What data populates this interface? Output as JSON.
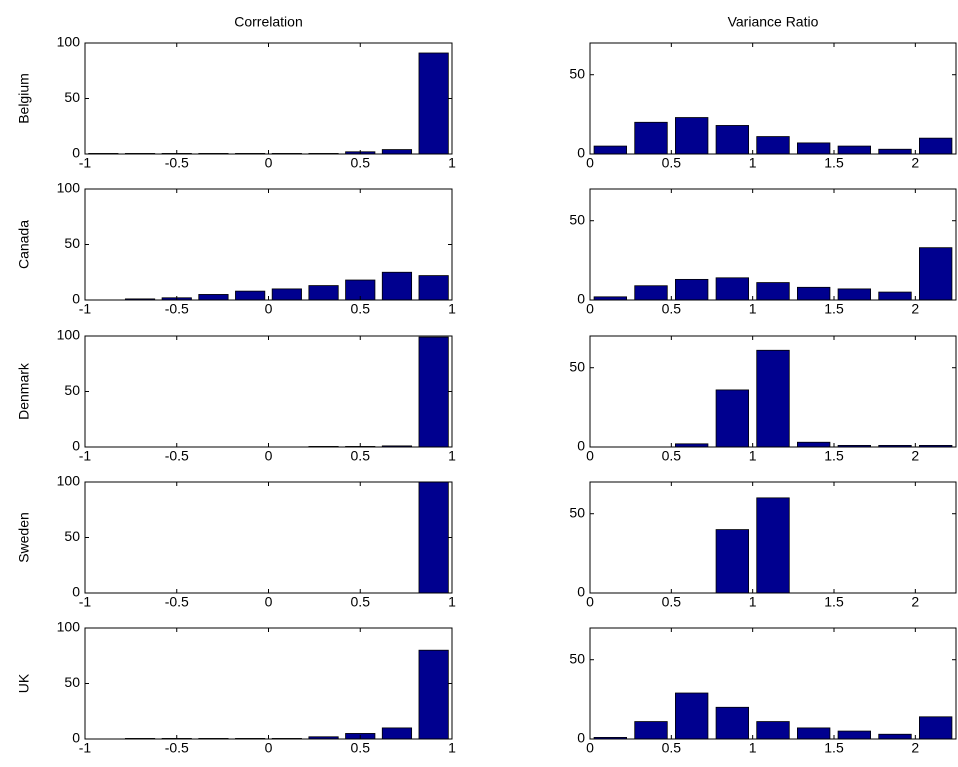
{
  "chart_data": [
    {
      "type": "histogram",
      "title": "Correlation",
      "ylabel": "Belgium",
      "color": "#00008f",
      "bins": [
        -1,
        -0.8,
        -0.6,
        -0.4,
        -0.2,
        0,
        0.2,
        0.4,
        0.6,
        0.8,
        1
      ],
      "values": [
        0.5,
        0.5,
        0.5,
        0.5,
        0.5,
        0.5,
        0.5,
        2,
        4,
        91
      ],
      "xlim": [
        -1,
        1
      ],
      "xticks": [
        -1,
        -0.5,
        0,
        0.5,
        1
      ],
      "ylim": [
        0,
        100
      ],
      "yticks": [
        0,
        50,
        100
      ]
    },
    {
      "type": "histogram",
      "title": "Variance Ratio",
      "color": "#00008f",
      "bins": [
        0,
        0.25,
        0.5,
        0.75,
        1,
        1.25,
        1.5,
        1.75,
        2,
        2.25
      ],
      "values": [
        5,
        20,
        23,
        18,
        11,
        7,
        5,
        3,
        10
      ],
      "xlim": [
        0,
        2.25
      ],
      "xticks": [
        0,
        0.5,
        1,
        1.5,
        2
      ],
      "ylim": [
        0,
        70
      ],
      "yticks": [
        0,
        50
      ]
    },
    {
      "type": "histogram",
      "ylabel": "Canada",
      "color": "#00008f",
      "bins": [
        -1,
        -0.8,
        -0.6,
        -0.4,
        -0.2,
        0,
        0.2,
        0.4,
        0.6,
        0.8,
        1
      ],
      "values": [
        0,
        1,
        2,
        5,
        8,
        10,
        13,
        18,
        25,
        22
      ],
      "xlim": [
        -1,
        1
      ],
      "xticks": [
        -1,
        -0.5,
        0,
        0.5,
        1
      ],
      "ylim": [
        0,
        100
      ],
      "yticks": [
        0,
        50,
        100
      ]
    },
    {
      "type": "histogram",
      "color": "#00008f",
      "bins": [
        0,
        0.25,
        0.5,
        0.75,
        1,
        1.25,
        1.5,
        1.75,
        2,
        2.25
      ],
      "values": [
        2,
        9,
        13,
        14,
        11,
        8,
        7,
        5,
        33
      ],
      "xlim": [
        0,
        2.25
      ],
      "xticks": [
        0,
        0.5,
        1,
        1.5,
        2
      ],
      "ylim": [
        0,
        70
      ],
      "yticks": [
        0,
        50
      ]
    },
    {
      "type": "histogram",
      "ylabel": "Denmark",
      "color": "#00008f",
      "bins": [
        -1,
        -0.8,
        -0.6,
        -0.4,
        -0.2,
        0,
        0.2,
        0.4,
        0.6,
        0.8,
        1
      ],
      "values": [
        0,
        0,
        0,
        0,
        0,
        0,
        0.5,
        0.5,
        1,
        99
      ],
      "xlim": [
        -1,
        1
      ],
      "xticks": [
        -1,
        -0.5,
        0,
        0.5,
        1
      ],
      "ylim": [
        0,
        100
      ],
      "yticks": [
        0,
        50,
        100
      ]
    },
    {
      "type": "histogram",
      "color": "#00008f",
      "bins": [
        0,
        0.25,
        0.5,
        0.75,
        1,
        1.25,
        1.5,
        1.75,
        2,
        2.25
      ],
      "values": [
        0,
        0,
        2,
        36,
        61,
        3,
        1,
        1,
        1
      ],
      "xlim": [
        0,
        2.25
      ],
      "xticks": [
        0,
        0.5,
        1,
        1.5,
        2
      ],
      "ylim": [
        0,
        70
      ],
      "yticks": [
        0,
        50
      ]
    },
    {
      "type": "histogram",
      "ylabel": "Sweden",
      "color": "#00008f",
      "bins": [
        -1,
        -0.8,
        -0.6,
        -0.4,
        -0.2,
        0,
        0.2,
        0.4,
        0.6,
        0.8,
        1
      ],
      "values": [
        0,
        0,
        0,
        0,
        0,
        0,
        0,
        0,
        0,
        100
      ],
      "xlim": [
        -1,
        1
      ],
      "xticks": [
        -1,
        -0.5,
        0,
        0.5,
        1
      ],
      "ylim": [
        0,
        100
      ],
      "yticks": [
        0,
        50,
        100
      ]
    },
    {
      "type": "histogram",
      "color": "#00008f",
      "bins": [
        0,
        0.25,
        0.5,
        0.75,
        1,
        1.25,
        1.5,
        1.75,
        2,
        2.25
      ],
      "values": [
        0,
        0,
        0,
        40,
        60,
        0,
        0,
        0,
        0
      ],
      "xlim": [
        0,
        2.25
      ],
      "xticks": [
        0,
        0.5,
        1,
        1.5,
        2
      ],
      "ylim": [
        0,
        70
      ],
      "yticks": [
        0,
        50
      ]
    },
    {
      "type": "histogram",
      "ylabel": "UK",
      "color": "#00008f",
      "bins": [
        -1,
        -0.8,
        -0.6,
        -0.4,
        -0.2,
        0,
        0.2,
        0.4,
        0.6,
        0.8,
        1
      ],
      "values": [
        0,
        0.5,
        0.5,
        0.5,
        0.5,
        0.5,
        2,
        5,
        10,
        80
      ],
      "xlim": [
        -1,
        1
      ],
      "xticks": [
        -1,
        -0.5,
        0,
        0.5,
        1
      ],
      "ylim": [
        0,
        100
      ],
      "yticks": [
        0,
        50,
        100
      ]
    },
    {
      "type": "histogram",
      "color": "#00008f",
      "bins": [
        0,
        0.25,
        0.5,
        0.75,
        1,
        1.25,
        1.5,
        1.75,
        2,
        2.25
      ],
      "values": [
        1,
        11,
        29,
        20,
        11,
        7,
        5,
        3,
        14
      ],
      "xlim": [
        0,
        2.25
      ],
      "xticks": [
        0,
        0.5,
        1,
        1.5,
        2
      ],
      "ylim": [
        0,
        70
      ],
      "yticks": [
        0,
        50
      ]
    }
  ]
}
